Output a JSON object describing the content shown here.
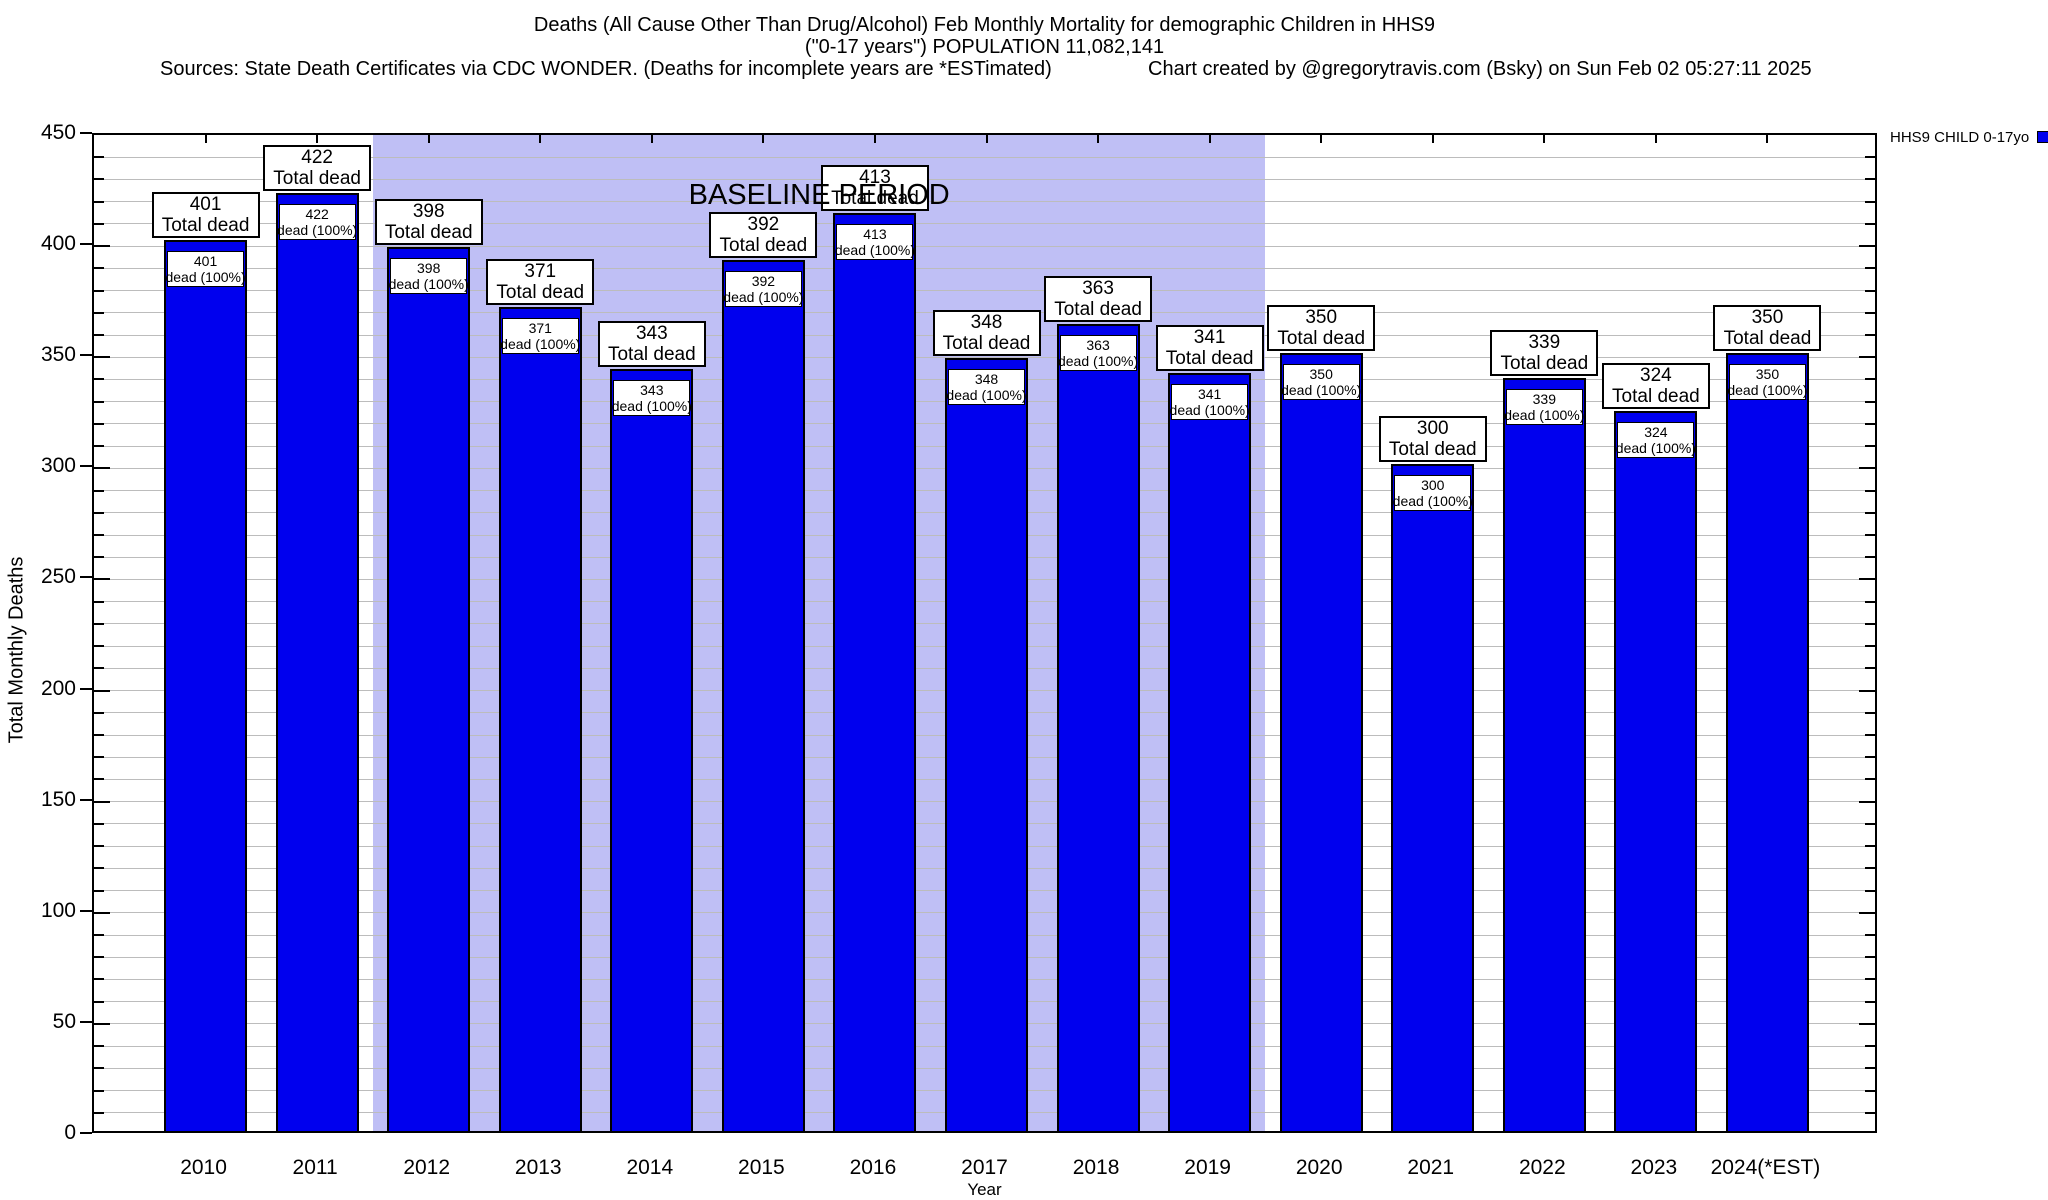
{
  "header": {
    "title_line1": "Deaths (All Cause Other Than Drug/Alcohol) Feb Monthly Mortality for demographic Children in HHS9",
    "title_line2": "(\"0-17 years\") POPULATION 11,082,141",
    "sources": "Sources: State Death Certificates via CDC WONDER. (Deaths for incomplete years are *ESTimated)",
    "credit": "Chart created by @gregorytravis.com (Bsky) on Sun Feb 02 05:27:11 2025"
  },
  "legend": {
    "label": "HHS9 CHILD 0-17yo",
    "swatch_color": "#0000ee"
  },
  "chart_data": {
    "type": "bar",
    "title": "Deaths (All Cause Other Than Drug/Alcohol) Feb Monthly Mortality for demographic Children in HHS9",
    "xlabel": "Year",
    "ylabel": "Total Monthly Deaths",
    "ylim": [
      0,
      450
    ],
    "y_major_ticks": [
      0,
      50,
      100,
      150,
      200,
      250,
      300,
      350,
      400,
      450
    ],
    "y_minor_step": 10,
    "grid": "minor horizontal",
    "legend_position": "top-right outside",
    "categories": [
      "2010",
      "2011",
      "2012",
      "2013",
      "2014",
      "2015",
      "2016",
      "2017",
      "2018",
      "2019",
      "2020",
      "2021",
      "2022",
      "2023",
      "2024(*EST)"
    ],
    "series": [
      {
        "name": "HHS9 CHILD 0-17yo",
        "values": [
          401,
          422,
          398,
          371,
          343,
          392,
          413,
          348,
          363,
          341,
          350,
          300,
          339,
          324,
          350
        ]
      }
    ],
    "bar_top_label_suffix": "Total dead",
    "bar_inner_label_suffix": "dead (100%)",
    "annotation": {
      "label": "BASELINE PERIOD",
      "from_category": "2012",
      "to_category": "2019"
    },
    "colors": {
      "bar": "#0000ee",
      "bar_edge": "#000000",
      "baseline_shade": "#bfbff5",
      "gridline": "#bcbcbc"
    }
  }
}
